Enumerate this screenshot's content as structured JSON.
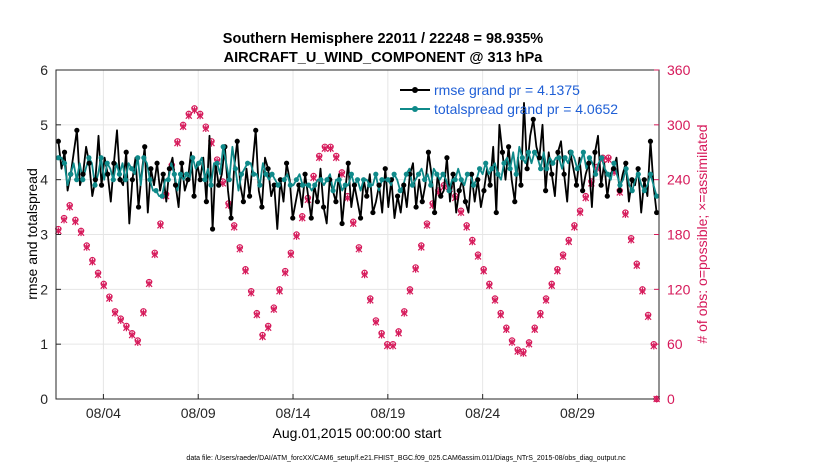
{
  "chart_data": {
    "type": "line",
    "title_line1": "Southern Hemisphere 22011 / 22248 = 98.935%",
    "title_line2": "AIRCRAFT_U_WIND_COMPONENT @ 313 hPa",
    "xlabel": "Aug.01,2015 00:00:00 start",
    "ylabel": "rmse and totalspread",
    "ylabel_right": "# of obs: o=possible; ×=assimilated",
    "xlim": [
      1,
      32.8
    ],
    "ylim": [
      0,
      6
    ],
    "ylim_right": [
      0,
      360
    ],
    "x_ticks": [
      3.5,
      8.5,
      13.5,
      18.5,
      23.5,
      28.5
    ],
    "x_tick_labels": [
      "08/04",
      "08/09",
      "08/14",
      "08/19",
      "08/24",
      "08/29"
    ],
    "y_ticks": [
      0,
      1,
      2,
      3,
      4,
      5,
      6
    ],
    "y_ticks_right": [
      0,
      60,
      120,
      180,
      240,
      300,
      360
    ],
    "footnote": "data file: /Users/raeder/DAI/ATM_forcXX/CAM6_setup/f.e21.FHIST_BGC.f09_025.CAM6assim.011/Diags_NTrS_2015-08/obs_diag_output.nc",
    "colors": {
      "rmse": "#000000",
      "spread": "#0f8a8a",
      "obs": "#d6195a",
      "legend_text": "#1f5fd6",
      "right_axis": "#d6195a"
    },
    "series": [
      {
        "name": "rmse grand pr = 4.1375",
        "values": [
          4.7,
          4.2,
          4.5,
          3.8,
          4.1,
          4.5,
          4.9,
          3.9,
          4.1,
          4.6,
          4.3,
          3.7,
          4.0,
          4.8,
          3.9,
          4.4,
          4.1,
          3.6,
          4.3,
          4.9,
          4.0,
          3.9,
          4.5,
          3.2,
          4.0,
          4.4,
          3.5,
          4.1,
          4.6,
          3.4,
          4.2,
          3.9,
          4.3,
          3.8,
          4.1,
          3.6,
          4.2,
          4.4,
          3.9,
          3.5,
          4.3,
          3.8,
          4.0,
          4.5,
          3.7,
          4.3,
          4.0,
          4.4,
          3.6,
          4.8,
          3.1,
          4.3,
          3.9,
          4.1,
          4.6,
          3.8,
          3.3,
          4.2,
          4.7,
          3.9,
          3.6,
          4.2,
          3.7,
          4.3,
          4.9,
          3.8,
          3.5,
          4.4,
          4.2,
          3.7,
          3.9,
          3.1,
          4.0,
          3.6,
          4.3,
          4.0,
          3.3,
          3.6,
          3.9,
          3.5,
          4.1,
          3.7,
          3.3,
          3.9,
          3.6,
          4.2,
          3.5,
          3.2,
          4.0,
          3.8,
          3.6,
          4.1,
          3.2,
          3.8,
          4.3,
          3.5,
          3.9,
          3.6,
          3.3,
          4.0,
          3.7,
          4.1,
          3.4,
          3.6,
          3.9,
          3.4,
          4.2,
          3.5,
          4.0,
          3.3,
          3.7,
          3.4,
          3.9,
          3.5,
          4.1,
          4.3,
          3.5,
          4.0,
          3.6,
          3.9,
          4.5,
          4.1,
          3.4,
          4.1,
          3.7,
          3.8,
          4.4,
          3.6,
          4.1,
          3.4,
          3.8,
          4.0,
          3.6,
          3.4,
          4.1,
          3.6,
          4.0,
          3.5,
          3.8,
          4.2,
          3.9,
          4.6,
          3.4,
          5.0,
          4.5,
          4.0,
          4.6,
          4.0,
          3.6,
          4.4,
          3.9,
          5.4,
          4.2,
          4.8,
          5.1,
          4.6,
          4.4,
          5.0,
          3.8,
          4.5,
          4.1,
          3.7,
          4.5,
          4.7,
          4.1,
          3.6,
          4.5,
          4.2,
          3.9,
          4.4,
          3.8,
          4.1,
          4.3,
          3.5,
          4.5,
          4.8,
          3.9,
          4.3,
          3.7,
          4.1,
          4.2,
          4.4,
          3.8,
          4.1,
          4.3,
          3.6,
          4.0,
          3.9,
          4.2,
          3.4,
          4.0,
          3.7,
          4.7,
          3.9,
          3.4
        ],
        "color": "#000000"
      },
      {
        "name": "totalspread grand pr = 4.0652",
        "values": [
          4.4,
          4.4,
          4.3,
          3.9,
          4.1,
          4.3,
          4.0,
          4.3,
          4.0,
          4.2,
          4.4,
          4.3,
          3.9,
          4.1,
          4.4,
          4.0,
          4.3,
          4.2,
          4.0,
          4.3,
          4.1,
          4.3,
          4.0,
          4.3,
          4.2,
          4.1,
          4.4,
          3.9,
          4.4,
          4.3,
          4.0,
          3.8,
          3.8,
          3.7,
          3.7,
          4.0,
          4.0,
          4.3,
          4.1,
          3.8,
          4.1,
          4.0,
          4.1,
          4.0,
          4.4,
          4.2,
          4.3,
          4.4,
          4.0,
          4.2,
          3.9,
          4.3,
          4.3,
          4.1,
          4.6,
          4.3,
          4.0,
          4.6,
          4.2,
          3.8,
          4.1,
          4.2,
          4.3,
          4.3,
          4.1,
          4.1,
          3.9,
          4.3,
          4.1,
          4.0,
          4.1,
          4.0,
          3.9,
          4.0,
          4.0,
          4.1,
          3.9,
          3.9,
          4.0,
          4.1,
          3.9,
          3.9,
          3.9,
          3.8,
          3.9,
          4.0,
          4.0,
          3.9,
          4.0,
          4.1,
          3.8,
          4.0,
          4.0,
          3.8,
          3.9,
          3.9,
          4.1,
          3.9,
          4.0,
          3.8,
          4.0,
          4.0,
          3.9,
          3.9,
          4.1,
          3.8,
          4.0,
          4.0,
          4.0,
          3.9,
          4.1,
          4.0,
          3.8,
          3.9,
          4.1,
          4.2,
          3.9,
          4.0,
          4.1,
          4.2,
          4.0,
          4.1,
          3.9,
          4.2,
          4.1,
          4.0,
          4.1,
          4.0,
          3.8,
          4.0,
          4.0,
          4.2,
          4.0,
          3.9,
          4.1,
          4.1,
          3.9,
          4.0,
          4.2,
          4.1,
          4.3,
          4.1,
          4.2,
          4.3,
          4.1,
          4.0,
          4.3,
          4.4,
          4.2,
          4.5,
          4.1,
          4.6,
          4.4,
          4.3,
          4.5,
          4.3,
          4.5,
          4.4,
          4.2,
          4.5,
          4.2,
          4.4,
          4.3,
          4.4,
          4.4,
          4.2,
          4.4,
          4.3,
          4.5,
          4.4,
          4.2,
          4.3,
          4.5,
          4.2,
          4.4,
          4.3,
          4.1,
          4.3,
          4.4,
          4.2,
          4.1,
          4.0,
          4.3,
          4.1,
          3.9,
          4.0,
          4.2,
          3.9,
          3.8,
          4.0,
          4.1,
          3.9,
          3.8,
          3.9,
          4.1,
          3.9,
          3.7
        ],
        "color": "#0f8a8a"
      }
    ],
    "obs_possible": [
      186,
      190,
      198,
      210,
      212,
      204,
      196,
      190,
      184,
      176,
      168,
      160,
      152,
      144,
      138,
      132,
      126,
      120,
      112,
      104,
      96,
      92,
      88,
      84,
      80,
      76,
      72,
      68,
      64,
      80,
      96,
      112,
      128,
      144,
      160,
      176,
      192,
      208,
      224,
      240,
      256,
      270,
      282,
      292,
      300,
      306,
      312,
      315,
      318,
      316,
      312,
      306,
      298,
      290,
      282,
      272,
      262,
      250,
      238,
      226,
      214,
      202,
      190,
      178,
      166,
      154,
      142,
      130,
      118,
      106,
      94,
      82,
      70,
      72,
      80,
      90,
      100,
      110,
      120,
      130,
      140,
      150,
      160,
      170,
      180,
      190,
      200,
      210,
      220,
      232,
      244,
      256,
      266,
      272,
      276,
      278,
      276,
      272,
      266,
      258,
      248,
      236,
      222,
      208,
      194,
      180,
      166,
      152,
      138,
      124,
      110,
      96,
      86,
      78,
      72,
      66,
      60,
      58,
      60,
      66,
      74,
      84,
      96,
      108,
      120,
      132,
      144,
      156,
      168,
      180,
      192,
      204,
      214,
      222,
      228,
      232,
      234,
      234,
      232,
      228,
      222,
      214,
      206,
      198,
      190,
      182,
      174,
      166,
      158,
      150,
      142,
      134,
      126,
      118,
      110,
      102,
      94,
      86,
      78,
      70,
      64,
      58,
      54,
      50,
      52,
      56,
      62,
      70,
      78,
      86,
      94,
      102,
      110,
      118,
      126,
      134,
      142,
      150,
      158,
      166,
      174,
      182,
      190,
      198,
      206,
      214,
      222,
      230,
      238,
      246,
      254,
      260,
      264,
      266,
      264,
      258,
      250,
      240,
      228,
      216,
      204,
      190,
      176,
      162,
      148,
      134,
      120,
      106,
      92,
      76,
      60,
      0
    ],
    "obs_assimilated": [
      184,
      188,
      196,
      208,
      210,
      202,
      194,
      188,
      182,
      174,
      166,
      158,
      150,
      142,
      136,
      130,
      124,
      118,
      110,
      102,
      94,
      90,
      86,
      82,
      78,
      74,
      70,
      66,
      62,
      78,
      94,
      110,
      126,
      142,
      158,
      174,
      190,
      206,
      222,
      238,
      254,
      268,
      280,
      290,
      298,
      304,
      310,
      313,
      316,
      314,
      310,
      304,
      296,
      288,
      280,
      270,
      260,
      248,
      236,
      224,
      212,
      200,
      188,
      176,
      164,
      152,
      140,
      128,
      116,
      104,
      92,
      80,
      68,
      70,
      78,
      88,
      98,
      108,
      118,
      128,
      138,
      148,
      158,
      168,
      178,
      188,
      198,
      208,
      218,
      230,
      242,
      254,
      264,
      270,
      274,
      276,
      274,
      270,
      264,
      256,
      246,
      234,
      220,
      206,
      192,
      178,
      164,
      150,
      136,
      122,
      108,
      94,
      84,
      76,
      70,
      64,
      58,
      56,
      58,
      64,
      72,
      82,
      94,
      106,
      118,
      130,
      142,
      154,
      166,
      178,
      190,
      202,
      212,
      220,
      226,
      230,
      232,
      232,
      230,
      226,
      220,
      212,
      204,
      196,
      188,
      180,
      172,
      164,
      156,
      148,
      140,
      132,
      124,
      116,
      108,
      100,
      92,
      84,
      76,
      68,
      62,
      56,
      52,
      48,
      50,
      54,
      60,
      68,
      76,
      84,
      92,
      100,
      108,
      116,
      124,
      132,
      140,
      148,
      156,
      164,
      172,
      180,
      188,
      196,
      204,
      212,
      220,
      228,
      236,
      244,
      252,
      258,
      262,
      264,
      262,
      256,
      248,
      238,
      226,
      214,
      202,
      188,
      174,
      160,
      146,
      132,
      118,
      104,
      90,
      74,
      58,
      0
    ]
  }
}
